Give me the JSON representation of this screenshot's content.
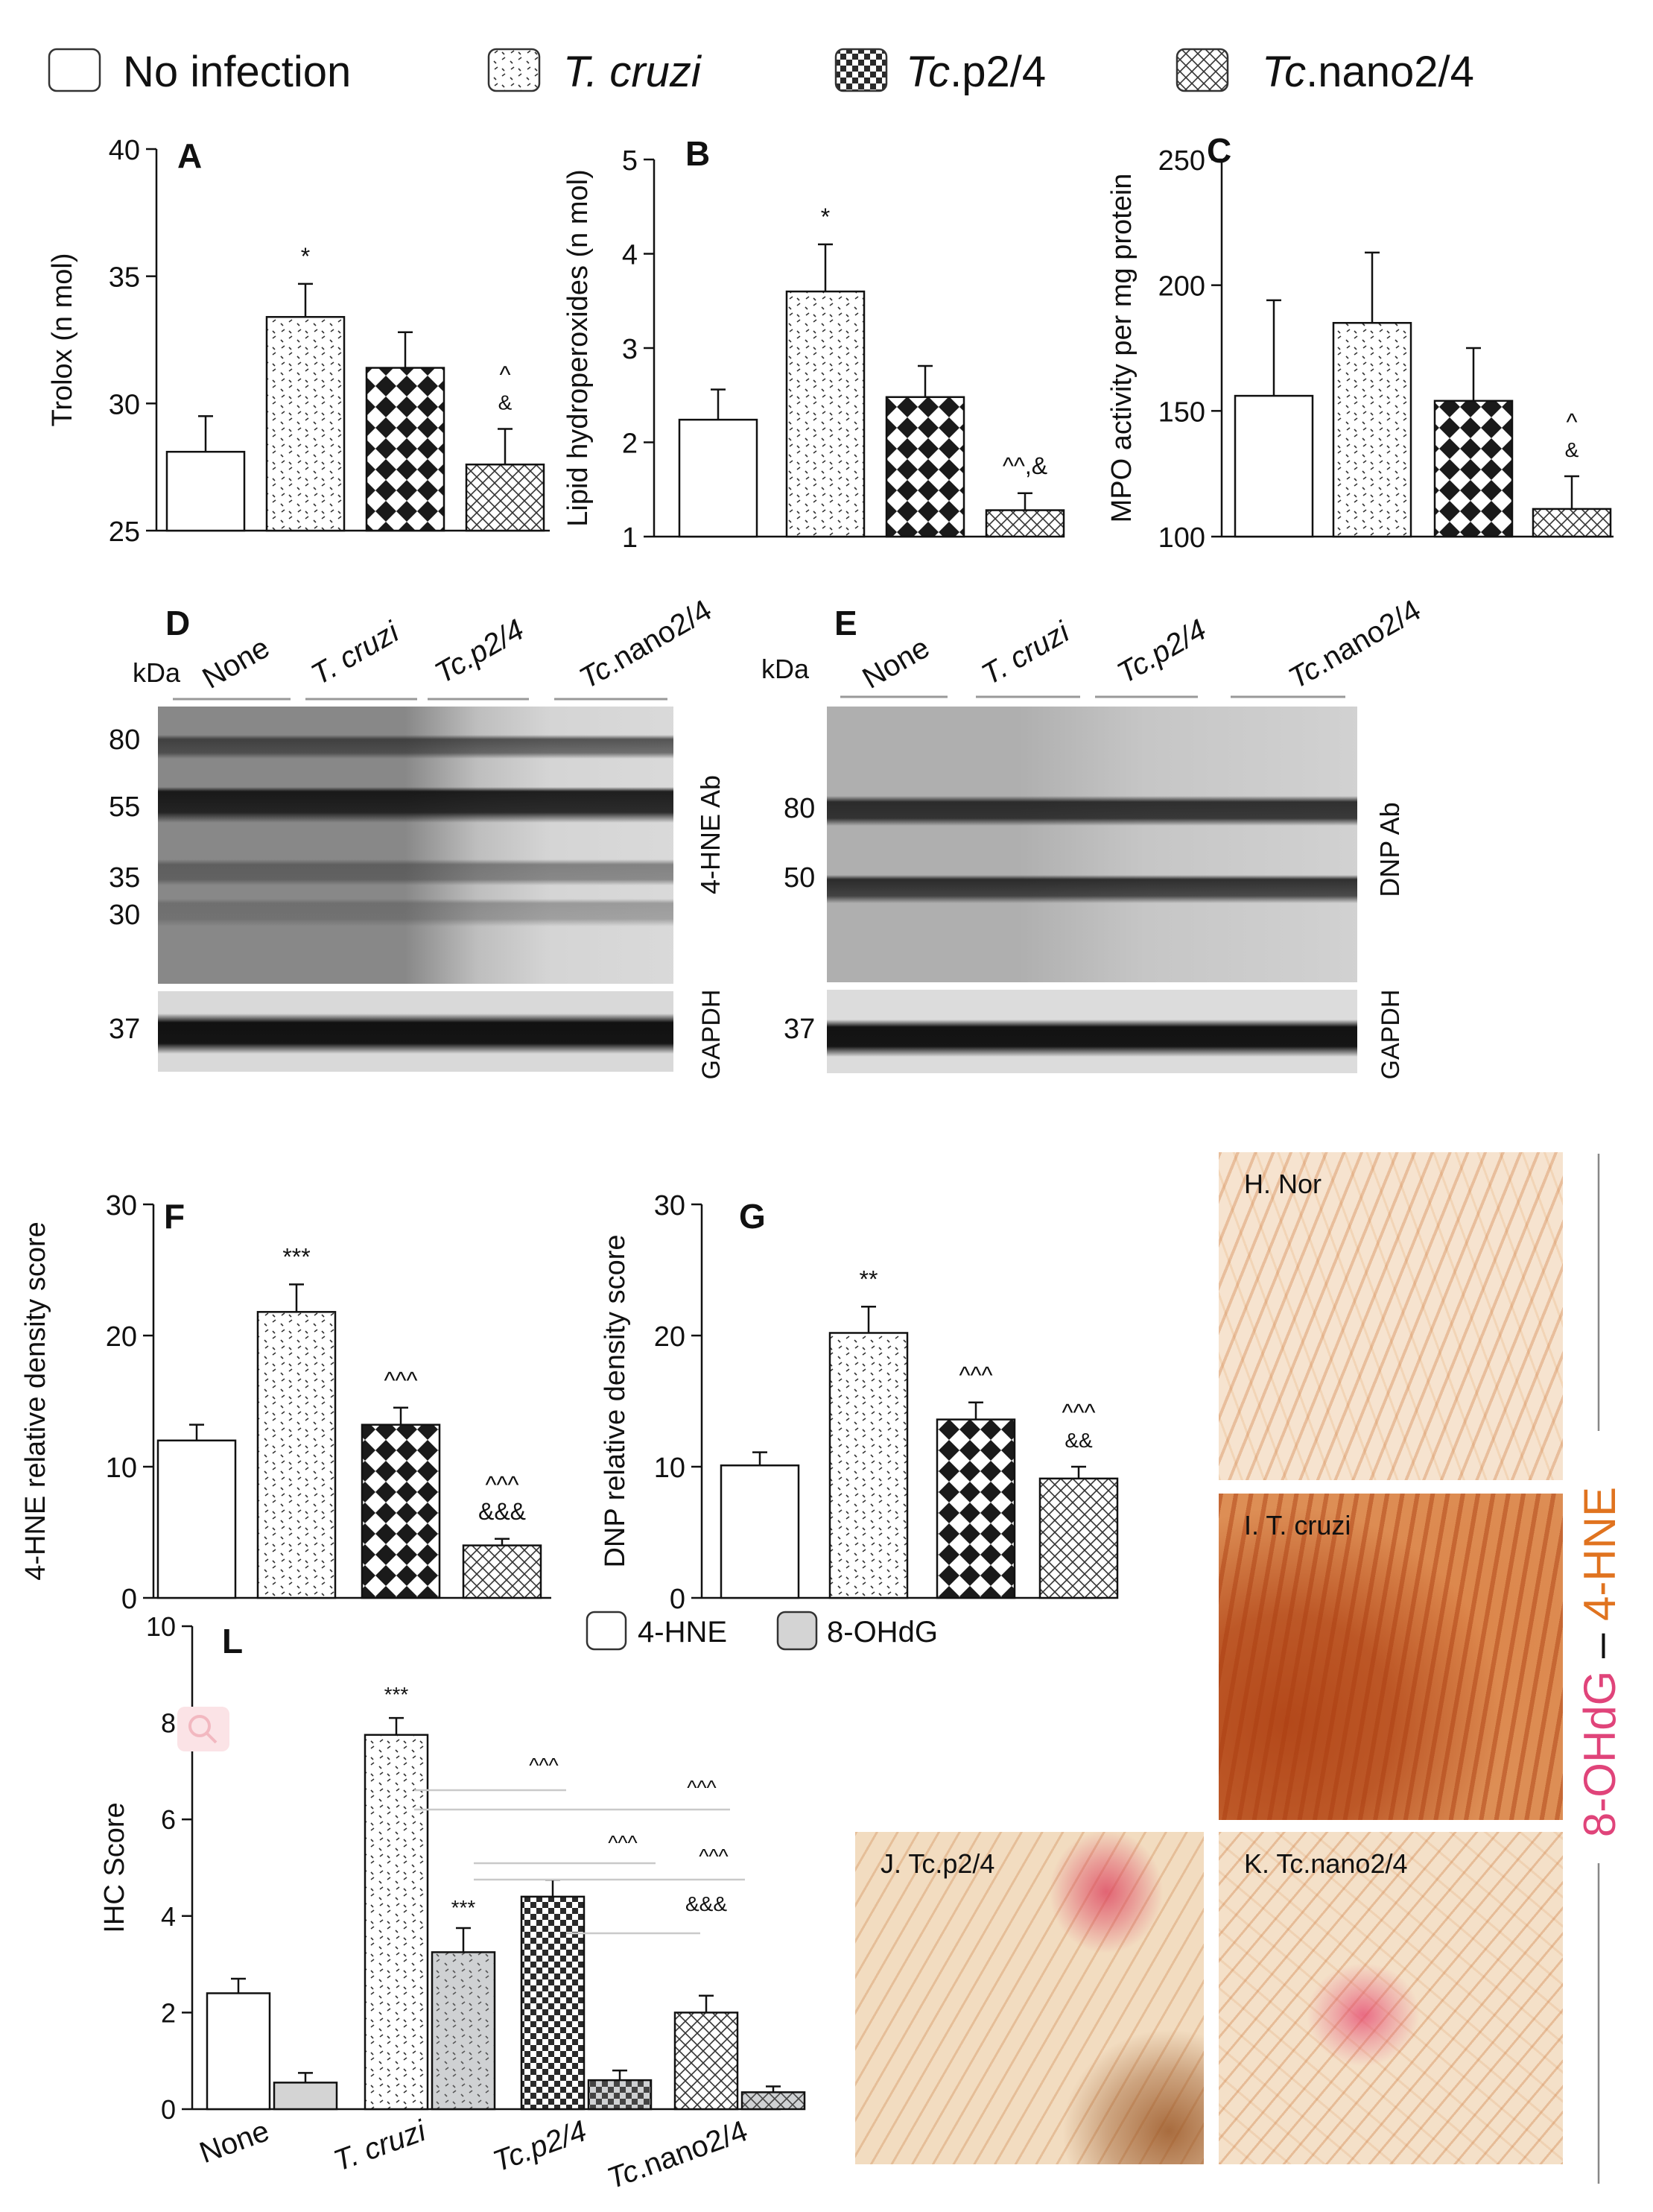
{
  "legend_top": [
    {
      "label": "No infection",
      "pattern": "white"
    },
    {
      "label": "T. cruzi",
      "pattern": "dots",
      "italic": true
    },
    {
      "label": "Tc.p2/4",
      "pattern": "checker",
      "italic_part": "Tc"
    },
    {
      "label": "Tc.nano2/4",
      "pattern": "crosshatch",
      "italic_part": "Tc"
    }
  ],
  "colors": {
    "ink": "#111111",
    "bar_fill_white": "#ffffff",
    "gray_bar": "#d4d4d4",
    "pink_text": "#e0447a",
    "orange_text": "#e0731f",
    "tissue_light": "#f5dcc3",
    "tissue_dark": "#c8581e"
  },
  "chart_data": [
    {
      "panel": "A",
      "type": "bar",
      "ylabel": "Trolox (n mol)",
      "ylim": [
        25,
        40
      ],
      "yticks": [
        25,
        30,
        35,
        40
      ],
      "values": [
        28.1,
        33.4,
        31.4,
        27.6
      ],
      "errors": [
        1.4,
        1.3,
        1.4,
        1.4
      ],
      "annotations": [
        "",
        "*",
        "",
        "^\n&"
      ]
    },
    {
      "panel": "B",
      "type": "bar",
      "ylabel": "Lipid hydroperoxides (n mol)",
      "ylim": [
        1,
        5
      ],
      "yticks": [
        1,
        2,
        3,
        4,
        5
      ],
      "values": [
        2.24,
        3.6,
        2.48,
        1.28
      ],
      "errors": [
        0.32,
        0.5,
        0.33,
        0.18
      ],
      "annotations": [
        "",
        "*",
        "",
        "^^,&"
      ]
    },
    {
      "panel": "C",
      "type": "bar",
      "ylabel": "MPO activity per mg protein",
      "ylim": [
        100,
        250
      ],
      "yticks": [
        100,
        150,
        200,
        250
      ],
      "values": [
        156,
        185,
        154,
        111
      ],
      "errors": [
        38,
        28,
        21,
        13
      ],
      "annotations": [
        "",
        "",
        "",
        "^\n&"
      ]
    },
    {
      "panel": "F",
      "type": "bar",
      "ylabel": "4-HNE relative density score",
      "ylim": [
        0,
        30
      ],
      "yticks": [
        0,
        10,
        20,
        30
      ],
      "values": [
        12.0,
        21.8,
        13.2,
        4.0
      ],
      "errors": [
        1.2,
        2.1,
        1.3,
        0.5
      ],
      "annotations": [
        "",
        "***",
        "^^^",
        "^^^\n&&&"
      ]
    },
    {
      "panel": "G",
      "type": "bar",
      "ylabel": "DNP relative density score",
      "ylim": [
        0,
        30
      ],
      "yticks": [
        0,
        10,
        20,
        30
      ],
      "values": [
        10.1,
        20.2,
        13.6,
        9.1
      ],
      "errors": [
        1.0,
        2.0,
        1.3,
        0.9
      ],
      "annotations": [
        "",
        "**",
        "^^^",
        "^^^\n&&"
      ]
    },
    {
      "panel": "L",
      "type": "bar",
      "ylabel": "IHC Score",
      "ylim": [
        0,
        10
      ],
      "yticks": [
        0,
        2,
        4,
        6,
        8,
        10
      ],
      "categories": [
        "None",
        "T. cruzi",
        "Tc.p2/4",
        "Tc.nano2/4"
      ],
      "series": [
        {
          "name": "4-HNE",
          "values": [
            2.4,
            7.75,
            4.4,
            2.0
          ],
          "errors": [
            0.3,
            0.35,
            0.35,
            0.35
          ]
        },
        {
          "name": "8-OHdG",
          "values": [
            0.55,
            3.25,
            0.6,
            0.35
          ],
          "errors": [
            0.2,
            0.5,
            0.2,
            0.12
          ]
        }
      ],
      "annotations": [
        "***",
        "***",
        "^^^",
        "^^^",
        "^^^",
        "^^^",
        "&&&"
      ]
    }
  ],
  "blots": {
    "D": {
      "letter": "D",
      "kda_label": "kDa",
      "lanes": [
        "None",
        "T. cruzi",
        "Tc.p2/4",
        "Tc.nano2/4"
      ],
      "markers": [
        "80",
        "55",
        "35",
        "30"
      ],
      "loading_marker": "37",
      "right_label": "4-HNE Ab",
      "loading_label": "GAPDH"
    },
    "E": {
      "letter": "E",
      "kda_label": "kDa",
      "lanes": [
        "None",
        "T. cruzi",
        "Tc.p2/4",
        "Tc.nano2/4"
      ],
      "markers": [
        "80",
        "50"
      ],
      "loading_marker": "37",
      "right_label": "DNP Ab",
      "loading_label": "GAPDH"
    }
  },
  "micrographs": [
    {
      "label": "H. Nor"
    },
    {
      "label": "I. T. cruzi"
    },
    {
      "label": "J. Tc.p2/4"
    },
    {
      "label": "K. Tc.nano2/4"
    }
  ],
  "stain_label": {
    "part1": "8-OHdG",
    "dash": " – ",
    "part2": "4-HNE"
  },
  "l_legend": [
    "4-HNE",
    "8-OHdG"
  ]
}
